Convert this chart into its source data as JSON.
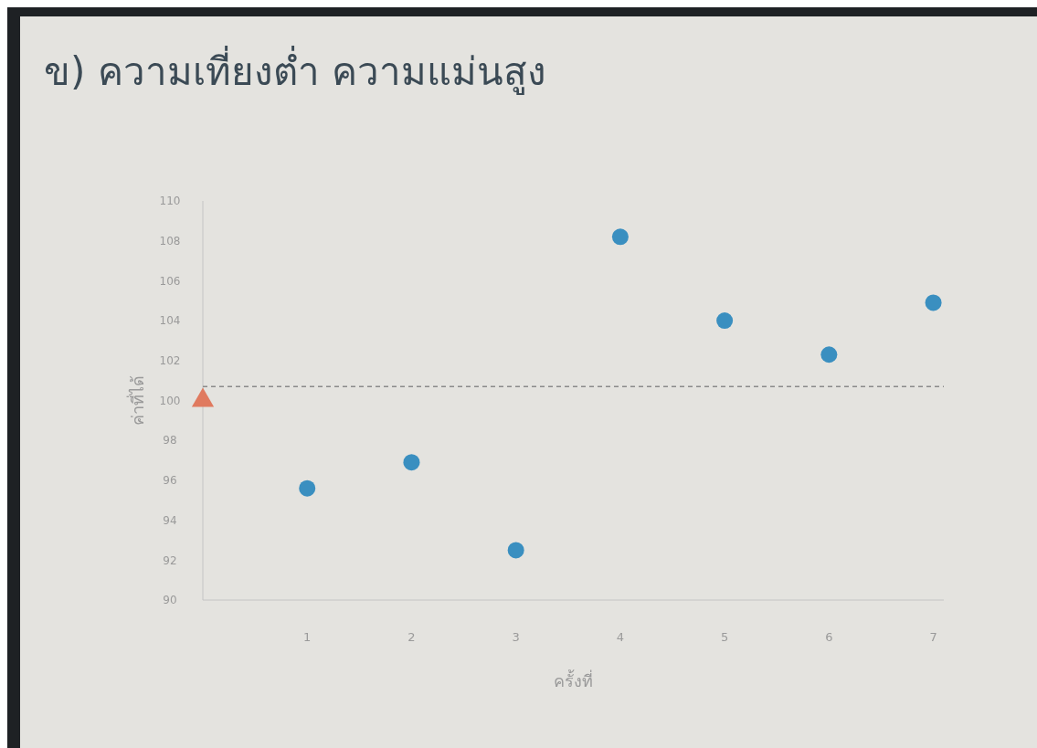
{
  "chart_data": {
    "type": "scatter",
    "title": "ข) ความเที่ยงต่ำ ความแม่นสูง",
    "xlabel": "ครั้งที่",
    "ylabel": "ค่าที่ได้",
    "xlim": [
      0,
      7.1
    ],
    "xticks": [
      1,
      2,
      3,
      4,
      5,
      6,
      7
    ],
    "ylim": [
      90,
      110
    ],
    "yticks": [
      90,
      92,
      94,
      96,
      98,
      100,
      102,
      104,
      106,
      108,
      110
    ],
    "marker": "circle",
    "grid": false,
    "series": [
      {
        "color": "#3a8fc0",
        "x": [
          1,
          2,
          3,
          4,
          5,
          6,
          7
        ],
        "values": [
          95.6,
          96.9,
          92.5,
          108.2,
          104,
          102.3,
          104.9
        ]
      },
      {
        "color": "#e07a5f",
        "marker": "triangle",
        "x": [
          0
        ],
        "values": [
          100
        ]
      }
    ],
    "ref_lines": [
      {
        "axis": "y",
        "value": 100.7,
        "line_style": "dashed",
        "color": "#8a8a8a"
      }
    ]
  }
}
